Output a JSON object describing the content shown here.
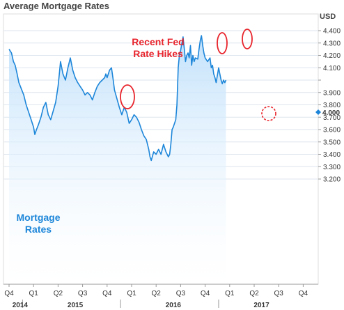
{
  "chart_data": {
    "type": "area",
    "title": "Average Mortgage Rates",
    "unit": "USD",
    "ylim": [
      3.15,
      4.45
    ],
    "yticks": [
      "4.400",
      "4.300",
      "4.200",
      "4.100",
      "4.000",
      "3.900",
      "3.800",
      "3.700",
      "3.600",
      "3.500",
      "3.400",
      "3.300",
      "3.200"
    ],
    "x_quarters": [
      "Q4",
      "Q1",
      "Q2",
      "Q3",
      "Q4",
      "Q1",
      "Q2",
      "Q3",
      "Q4",
      "Q1",
      "Q2",
      "Q3",
      "Q4"
    ],
    "x_years": [
      "2014",
      "2015",
      "2016",
      "2017"
    ],
    "last_value": "4.000",
    "annotations": {
      "fed_hikes": [
        "Recent Fed",
        "Rate Hikes"
      ],
      "mortgage_rates": [
        "Mortgage",
        "Rates"
      ]
    },
    "series": [
      {
        "values": [
          [
            0.0,
            4.25
          ],
          [
            0.1,
            4.22
          ],
          [
            0.18,
            4.15
          ],
          [
            0.25,
            4.12
          ],
          [
            0.33,
            4.05
          ],
          [
            0.4,
            3.98
          ],
          [
            0.5,
            3.93
          ],
          [
            0.6,
            3.88
          ],
          [
            0.7,
            3.8
          ],
          [
            0.8,
            3.74
          ],
          [
            0.9,
            3.68
          ],
          [
            1.0,
            3.62
          ],
          [
            1.05,
            3.56
          ],
          [
            1.12,
            3.6
          ],
          [
            1.2,
            3.64
          ],
          [
            1.3,
            3.7
          ],
          [
            1.4,
            3.78
          ],
          [
            1.5,
            3.82
          ],
          [
            1.6,
            3.72
          ],
          [
            1.7,
            3.68
          ],
          [
            1.8,
            3.75
          ],
          [
            1.9,
            3.82
          ],
          [
            2.0,
            3.95
          ],
          [
            2.05,
            4.05
          ],
          [
            2.1,
            4.15
          ],
          [
            2.2,
            4.05
          ],
          [
            2.3,
            4.0
          ],
          [
            2.4,
            4.1
          ],
          [
            2.5,
            4.18
          ],
          [
            2.6,
            4.08
          ],
          [
            2.7,
            4.02
          ],
          [
            2.8,
            3.98
          ],
          [
            2.9,
            3.95
          ],
          [
            3.0,
            3.92
          ],
          [
            3.1,
            3.88
          ],
          [
            3.2,
            3.9
          ],
          [
            3.3,
            3.88
          ],
          [
            3.4,
            3.84
          ],
          [
            3.5,
            3.9
          ],
          [
            3.6,
            3.95
          ],
          [
            3.7,
            3.98
          ],
          [
            3.8,
            4.0
          ],
          [
            3.9,
            4.02
          ],
          [
            3.95,
            4.05
          ],
          [
            4.0,
            4.02
          ],
          [
            4.1,
            4.08
          ],
          [
            4.18,
            4.1
          ],
          [
            4.25,
            4.0
          ],
          [
            4.3,
            3.92
          ],
          [
            4.4,
            3.85
          ],
          [
            4.5,
            3.78
          ],
          [
            4.6,
            3.72
          ],
          [
            4.7,
            3.78
          ],
          [
            4.8,
            3.74
          ],
          [
            4.9,
            3.65
          ],
          [
            5.0,
            3.68
          ],
          [
            5.1,
            3.72
          ],
          [
            5.2,
            3.7
          ],
          [
            5.3,
            3.66
          ],
          [
            5.4,
            3.6
          ],
          [
            5.5,
            3.55
          ],
          [
            5.6,
            3.52
          ],
          [
            5.7,
            3.44
          ],
          [
            5.75,
            3.38
          ],
          [
            5.8,
            3.35
          ],
          [
            5.9,
            3.42
          ],
          [
            6.0,
            3.4
          ],
          [
            6.1,
            3.44
          ],
          [
            6.2,
            3.4
          ],
          [
            6.3,
            3.48
          ],
          [
            6.4,
            3.42
          ],
          [
            6.5,
            3.38
          ],
          [
            6.55,
            3.4
          ],
          [
            6.6,
            3.48
          ],
          [
            6.65,
            3.6
          ],
          [
            6.7,
            3.62
          ],
          [
            6.8,
            3.68
          ],
          [
            6.85,
            3.8
          ],
          [
            6.9,
            4.1
          ],
          [
            6.95,
            4.2
          ],
          [
            7.0,
            4.24
          ],
          [
            7.05,
            4.3
          ],
          [
            7.1,
            4.35
          ],
          [
            7.15,
            4.25
          ],
          [
            7.2,
            4.15
          ],
          [
            7.25,
            4.2
          ],
          [
            7.3,
            4.22
          ],
          [
            7.35,
            4.18
          ],
          [
            7.4,
            4.28
          ],
          [
            7.45,
            4.12
          ],
          [
            7.5,
            4.2
          ],
          [
            7.55,
            4.15
          ],
          [
            7.6,
            4.18
          ],
          [
            7.7,
            4.17
          ],
          [
            7.75,
            4.25
          ],
          [
            7.8,
            4.32
          ],
          [
            7.85,
            4.36
          ],
          [
            7.9,
            4.28
          ],
          [
            7.95,
            4.22
          ],
          [
            8.0,
            4.18
          ],
          [
            8.1,
            4.15
          ],
          [
            8.2,
            4.18
          ],
          [
            8.25,
            4.1
          ],
          [
            8.3,
            4.12
          ],
          [
            8.35,
            4.05
          ],
          [
            8.4,
            4.02
          ],
          [
            8.45,
            3.98
          ],
          [
            8.5,
            4.04
          ],
          [
            8.55,
            4.1
          ],
          [
            8.6,
            4.05
          ],
          [
            8.65,
            4.0
          ],
          [
            8.7,
            3.97
          ],
          [
            8.75,
            4.0
          ],
          [
            8.8,
            3.98
          ],
          [
            8.85,
            4.0
          ]
        ]
      }
    ],
    "colors": {
      "line": "#1d86d9",
      "fill_top": "#bfe0fb",
      "annotation": "#e8242c",
      "grid": "#dde6ee"
    }
  }
}
